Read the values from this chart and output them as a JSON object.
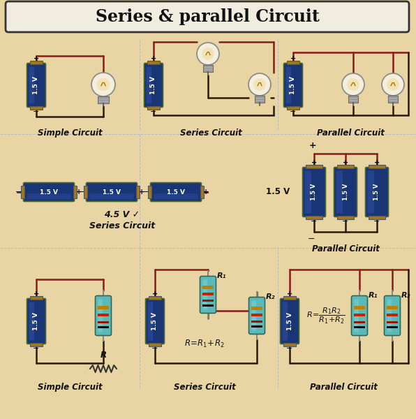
{
  "title": "Series & parallel Circuit",
  "bg_color": "#e8d5a3",
  "wire_red": "#8B1A1A",
  "wire_dark": "#2a1a0a",
  "battery_blue": "#1a3575",
  "battery_blue2": "#2a4a9a",
  "battery_gold": "#a07820",
  "battery_shine": "#3a5aaf",
  "resistor_teal": "#5ababa",
  "resistor_teal2": "#7ad0d0",
  "label1": "Simple Circuit",
  "label2": "Series Circuit",
  "label3": "Parallel Circuit",
  "label4": "4.5 V ✓",
  "label5": "Series Circuit",
  "label6": "Parallel Circuit",
  "label7": "Simple Circuit",
  "label8": "Series Circuit",
  "label9": "Parallel Circuit"
}
